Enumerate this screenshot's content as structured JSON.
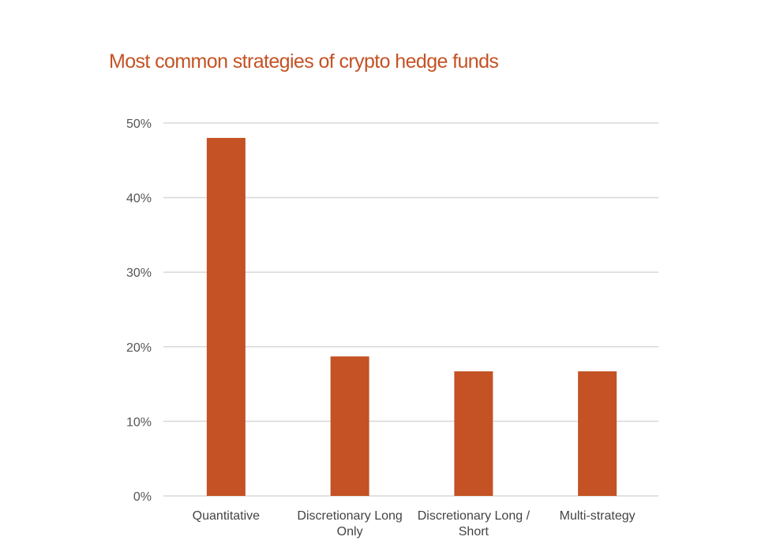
{
  "colors": {
    "bar": "#C45224",
    "title": "#C45224",
    "grid": "#d9d9d9"
  },
  "chart_data": {
    "type": "bar",
    "title": "Most common strategies of crypto hedge funds",
    "xlabel": "",
    "ylabel": "",
    "categories": [
      [
        "Quantitative"
      ],
      [
        "Discretionary Long",
        "Only"
      ],
      [
        "Discretionary Long /",
        "Short"
      ],
      [
        "Multi-strategy"
      ]
    ],
    "values": [
      48,
      18.7,
      16.7,
      16.7
    ],
    "ylim": [
      0,
      50
    ],
    "yticks": [
      "0%",
      "10%",
      "20%",
      "30%",
      "40%",
      "50%"
    ],
    "ytick_values": [
      0,
      10,
      20,
      30,
      40,
      50
    ],
    "grid": true,
    "legend": "none"
  }
}
